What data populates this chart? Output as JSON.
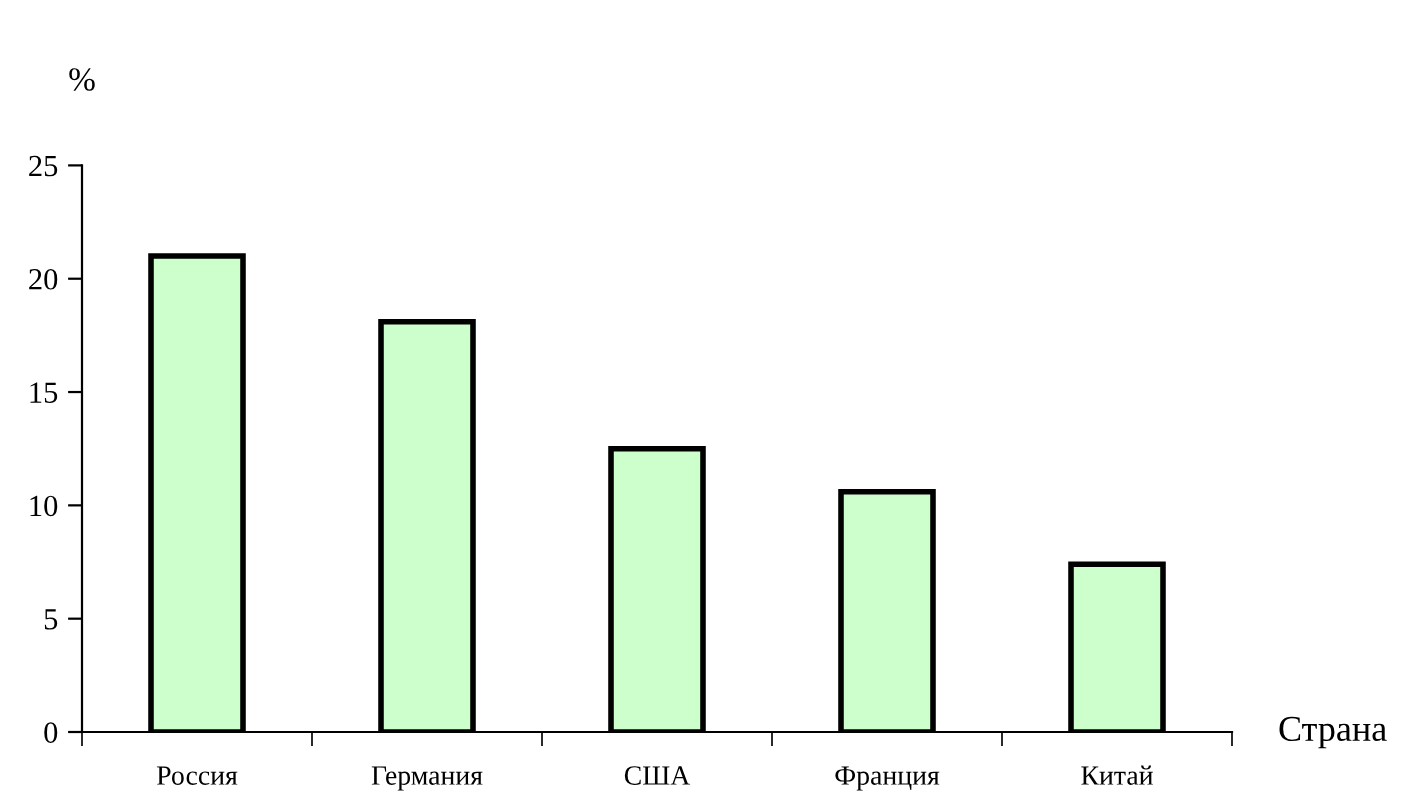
{
  "chart_data": {
    "type": "bar",
    "ylabel": "%",
    "xlabel": "Страна",
    "categories": [
      "Россия",
      "Германия",
      "США",
      "Франция",
      "Китай"
    ],
    "values": [
      21,
      18.1,
      12.5,
      10.6,
      7.4
    ],
    "color": "#ccffcc",
    "ylim": [
      0,
      25
    ],
    "yticks": [
      0,
      5,
      10,
      15,
      20,
      25
    ],
    "grid": false,
    "legend": false
  }
}
